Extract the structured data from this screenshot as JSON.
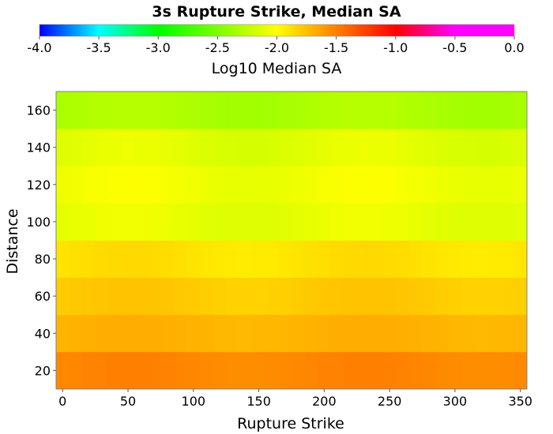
{
  "chart_data": {
    "type": "heatmap",
    "title": "3s Rupture Strike, Median SA",
    "xlabel": "Rupture Strike",
    "ylabel": "Distance",
    "x_ticks": [
      0,
      50,
      100,
      150,
      200,
      250,
      300,
      350
    ],
    "y_ticks": [
      20,
      40,
      60,
      80,
      100,
      120,
      140,
      160
    ],
    "xlim": [
      -5,
      355
    ],
    "ylim": [
      10,
      170
    ],
    "colorbar": {
      "label": "Log10 Median SA",
      "range": [
        -4.0,
        0.0
      ],
      "ticks": [
        "-4.0",
        "-3.5",
        "-3.0",
        "-2.5",
        "-2.0",
        "-1.5",
        "-1.0",
        "-0.5",
        "0.0"
      ],
      "stops": [
        {
          "value": -4.0,
          "color": "#0000ff"
        },
        {
          "value": -3.5,
          "color": "#00ffff"
        },
        {
          "value": -3.0,
          "color": "#00ff00"
        },
        {
          "value": -2.0,
          "color": "#ffff00"
        },
        {
          "value": -1.5,
          "color": "#ff8000"
        },
        {
          "value": -1.0,
          "color": "#ff0000"
        },
        {
          "value": -0.5,
          "color": "#ff00ff"
        },
        {
          "value": 0.0,
          "color": "#ff00ff"
        }
      ]
    },
    "x": [
      0,
      10,
      20,
      30,
      40,
      50,
      60,
      70,
      80,
      90,
      100,
      110,
      120,
      130,
      140,
      150,
      160,
      170,
      180,
      190,
      200,
      210,
      220,
      230,
      240,
      250,
      260,
      270,
      280,
      290,
      300,
      310,
      320,
      330,
      340,
      350
    ],
    "y": [
      20,
      40,
      60,
      80,
      100,
      120,
      140,
      160
    ],
    "rows": [
      {
        "distance": 20,
        "base": -1.55,
        "amp": 0.08
      },
      {
        "distance": 40,
        "base": -1.72,
        "amp": 0.07
      },
      {
        "distance": 60,
        "base": -1.82,
        "amp": 0.09
      },
      {
        "distance": 80,
        "base": -1.92,
        "amp": 0.11
      },
      {
        "distance": 100,
        "base": -2.13,
        "amp": 0.12
      },
      {
        "distance": 120,
        "base": -2.09,
        "amp": 0.13
      },
      {
        "distance": 140,
        "base": -2.16,
        "amp": 0.14
      },
      {
        "distance": 160,
        "base": -2.36,
        "amp": 0.12
      }
    ]
  }
}
